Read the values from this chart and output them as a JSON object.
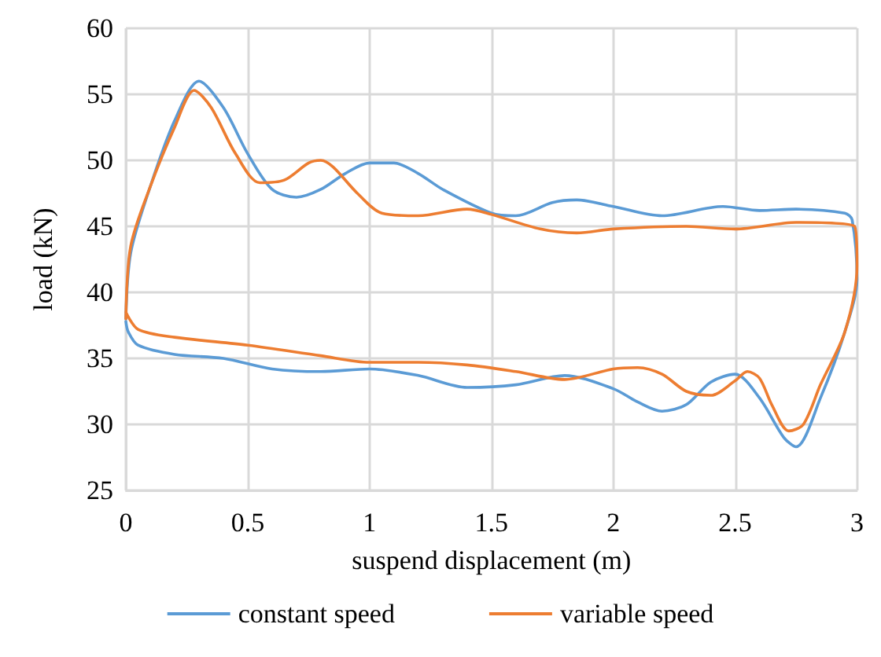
{
  "chart_data": {
    "type": "line",
    "xlabel": "suspend displacement (m)",
    "ylabel": "load (kN)",
    "xlim": [
      0,
      3
    ],
    "xticks": [
      0,
      0.5,
      1,
      1.5,
      2,
      2.5,
      3
    ],
    "ylim": [
      25,
      60
    ],
    "yticks": [
      25,
      30,
      35,
      40,
      45,
      50,
      55,
      60
    ],
    "grid": true,
    "legend": "bottom",
    "marker": "none",
    "line_style": "solid",
    "series": [
      {
        "name": "constant speed",
        "color": "#5b9bd5",
        "x": [
          0,
          0.02,
          0.1,
          0.2,
          0.3,
          0.4,
          0.5,
          0.6,
          0.7,
          0.8,
          0.9,
          1.0,
          1.1,
          1.2,
          1.3,
          1.5,
          1.6,
          1.75,
          1.85,
          2.0,
          2.2,
          2.45,
          2.6,
          2.75,
          2.95,
          2.98,
          3.0,
          2.95,
          2.85,
          2.75,
          2.7,
          2.6,
          2.5,
          2.4,
          2.3,
          2.2,
          2.1,
          2.0,
          1.8,
          1.6,
          1.4,
          1.2,
          1.0,
          0.8,
          0.6,
          0.4,
          0.2,
          0.05,
          0.01,
          0
        ],
        "values": [
          38,
          43,
          48,
          53,
          56,
          54,
          50.5,
          47.8,
          47.2,
          47.8,
          49,
          49.8,
          49.8,
          49,
          47.8,
          46,
          45.8,
          46.8,
          47,
          46.5,
          45.8,
          46.5,
          46.2,
          46.3,
          46,
          45.5,
          41,
          37,
          32,
          28.3,
          29,
          32,
          33.8,
          33.2,
          31.5,
          31,
          31.7,
          32.7,
          33.7,
          33,
          32.8,
          33.7,
          34.2,
          34,
          34.2,
          35,
          35.3,
          36,
          37,
          37.8
        ]
      },
      {
        "name": "variable speed",
        "color": "#ed7d31",
        "x": [
          0,
          0.02,
          0.1,
          0.2,
          0.28,
          0.35,
          0.45,
          0.55,
          0.65,
          0.75,
          0.8,
          0.85,
          0.95,
          1.05,
          1.2,
          1.4,
          1.5,
          1.7,
          1.85,
          2.0,
          2.3,
          2.5,
          2.75,
          2.99,
          3.0,
          2.95,
          2.85,
          2.78,
          2.72,
          2.65,
          2.6,
          2.55,
          2.5,
          2.4,
          2.3,
          2.2,
          2.1,
          2.0,
          1.8,
          1.6,
          1.4,
          1.2,
          1.0,
          0.8,
          0.5,
          0.2,
          0.05,
          0
        ],
        "values": [
          38,
          43.5,
          48,
          52.5,
          55.3,
          54,
          50.5,
          48.3,
          48.5,
          49.8,
          50,
          49.5,
          47.5,
          46,
          45.8,
          46.3,
          45.9,
          44.8,
          44.5,
          44.8,
          45,
          44.8,
          45.3,
          45,
          42,
          37,
          33,
          30,
          29.5,
          31.5,
          33.5,
          34,
          33.3,
          32.2,
          32.5,
          33.8,
          34.3,
          34.2,
          33.4,
          34,
          34.5,
          34.7,
          34.7,
          35.2,
          36,
          36.6,
          37.2,
          38.5
        ]
      }
    ]
  }
}
